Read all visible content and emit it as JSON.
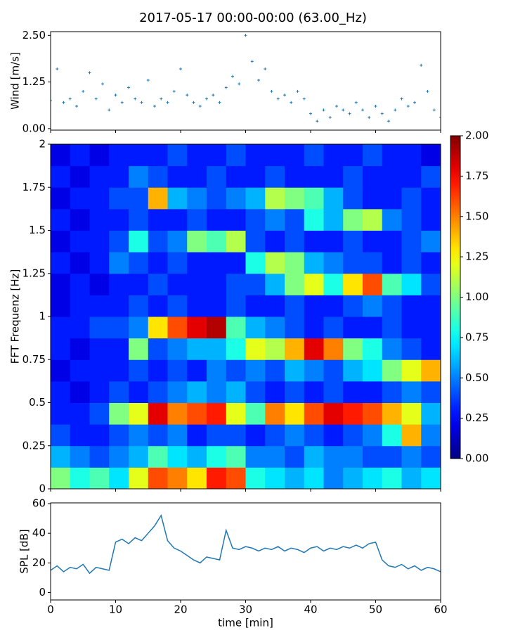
{
  "title": "2017-05-17 00:00-00:00 (63.00_Hz)",
  "chart_data": [
    {
      "type": "scatter",
      "ylabel": "Wind [m/s]",
      "color": "#1f77b4",
      "x": [
        0,
        1,
        2,
        3,
        4,
        5,
        6,
        7,
        8,
        9,
        10,
        11,
        12,
        13,
        14,
        15,
        16,
        17,
        18,
        19,
        20,
        21,
        22,
        23,
        24,
        25,
        26,
        27,
        28,
        29,
        30,
        31,
        32,
        33,
        34,
        35,
        36,
        37,
        38,
        39,
        40,
        41,
        42,
        43,
        44,
        45,
        46,
        47,
        48,
        49,
        50,
        51,
        52,
        53,
        54,
        55,
        56,
        57,
        58,
        59,
        60
      ],
      "values": [
        0.75,
        1.6,
        0.7,
        0.8,
        0.6,
        1.0,
        1.5,
        0.8,
        1.2,
        0.5,
        0.9,
        0.7,
        1.1,
        0.8,
        0.7,
        1.3,
        0.6,
        0.8,
        0.7,
        1.0,
        1.6,
        0.9,
        0.7,
        0.6,
        0.8,
        0.9,
        0.7,
        1.1,
        1.4,
        1.2,
        2.5,
        1.8,
        1.3,
        1.6,
        1.0,
        0.8,
        0.9,
        0.7,
        1.0,
        0.8,
        0.4,
        0.2,
        0.5,
        0.3,
        0.6,
        0.5,
        0.4,
        0.7,
        0.5,
        0.3,
        0.6,
        0.4,
        0.2,
        0.5,
        0.8,
        0.6,
        0.7,
        1.7,
        1.0,
        0.5,
        0.3
      ],
      "xlim": [
        0,
        60
      ],
      "ylim": [
        -0.04,
        2.6
      ],
      "yticks": [
        {
          "value": 0,
          "label": "0.00"
        },
        1.25,
        {
          "value": 2.5,
          "label": "2.50"
        }
      ]
    },
    {
      "type": "heatmap",
      "ylabel": "FFT Frequenz [Hz]",
      "colormap": "jet",
      "clim": [
        0,
        2
      ],
      "x_edges": [
        0,
        3,
        6,
        9,
        12,
        15,
        18,
        21,
        24,
        27,
        30,
        33,
        36,
        39,
        42,
        45,
        48,
        51,
        54,
        57,
        60
      ],
      "y_edges": [
        0,
        0.125,
        0.25,
        0.375,
        0.5,
        0.625,
        0.75,
        0.875,
        1,
        1.125,
        1.25,
        1.375,
        1.5,
        1.625,
        1.75,
        1.875,
        2
      ],
      "z": [
        [
          1.0,
          0.8,
          0.9,
          0.7,
          1.2,
          1.6,
          1.5,
          1.3,
          1.7,
          1.6,
          0.8,
          0.7,
          0.6,
          0.7,
          0.5,
          0.6,
          0.7,
          0.8,
          0.6,
          0.7
        ],
        [
          0.6,
          0.5,
          0.4,
          0.5,
          0.6,
          0.9,
          0.7,
          0.6,
          0.8,
          0.9,
          0.5,
          0.5,
          0.4,
          0.6,
          0.5,
          0.5,
          0.4,
          0.4,
          0.5,
          0.4
        ],
        [
          0.4,
          0.3,
          0.3,
          0.4,
          0.5,
          0.4,
          0.5,
          0.3,
          0.4,
          0.4,
          0.3,
          0.4,
          0.5,
          0.4,
          0.3,
          0.4,
          0.5,
          0.8,
          1.4,
          0.5
        ],
        [
          0.3,
          0.3,
          0.4,
          1.0,
          1.2,
          1.8,
          1.5,
          1.6,
          1.7,
          1.2,
          0.9,
          1.5,
          1.3,
          1.6,
          1.8,
          1.7,
          1.6,
          1.4,
          1.2,
          0.6
        ],
        [
          0.3,
          0.2,
          0.3,
          0.4,
          0.3,
          0.4,
          0.5,
          0.6,
          0.5,
          0.6,
          0.4,
          0.3,
          0.4,
          0.3,
          0.4,
          0.3,
          0.3,
          0.4,
          0.5,
          0.4
        ],
        [
          0.2,
          0.3,
          0.3,
          0.3,
          0.4,
          0.3,
          0.4,
          0.3,
          0.5,
          0.4,
          0.5,
          0.4,
          0.6,
          0.5,
          0.4,
          0.6,
          0.7,
          1.0,
          1.2,
          1.4
        ],
        [
          0.3,
          0.2,
          0.3,
          0.3,
          1.0,
          0.4,
          0.5,
          0.6,
          0.6,
          0.8,
          1.2,
          1.1,
          1.4,
          1.8,
          1.5,
          1.0,
          0.8,
          0.5,
          0.4,
          0.3
        ],
        [
          0.3,
          0.3,
          0.4,
          0.4,
          0.5,
          1.3,
          1.6,
          1.8,
          1.9,
          0.9,
          0.6,
          0.5,
          0.4,
          0.3,
          0.4,
          0.3,
          0.3,
          0.4,
          0.3,
          0.3
        ],
        [
          0.2,
          0.3,
          0.3,
          0.3,
          0.4,
          0.3,
          0.4,
          0.3,
          0.3,
          0.4,
          0.3,
          0.3,
          0.4,
          0.3,
          0.3,
          0.4,
          0.5,
          0.4,
          0.3,
          0.3
        ],
        [
          0.2,
          0.3,
          0.2,
          0.3,
          0.3,
          0.4,
          0.3,
          0.3,
          0.3,
          0.4,
          0.4,
          0.6,
          1.0,
          1.2,
          0.8,
          1.3,
          1.6,
          0.9,
          0.7,
          0.4
        ],
        [
          0.3,
          0.2,
          0.3,
          0.5,
          0.4,
          0.3,
          0.4,
          0.3,
          0.3,
          0.3,
          0.8,
          1.1,
          1.0,
          0.6,
          0.5,
          0.4,
          0.4,
          0.3,
          0.4,
          0.3
        ],
        [
          0.2,
          0.3,
          0.3,
          0.4,
          0.8,
          0.4,
          0.5,
          1.0,
          0.9,
          1.1,
          0.4,
          0.3,
          0.4,
          0.3,
          0.3,
          0.4,
          0.3,
          0.3,
          0.4,
          0.5
        ],
        [
          0.3,
          0.2,
          0.3,
          0.3,
          0.4,
          0.3,
          0.3,
          0.4,
          0.3,
          0.3,
          0.4,
          0.5,
          0.4,
          0.8,
          0.6,
          1.0,
          1.1,
          0.5,
          0.4,
          0.3
        ],
        [
          0.2,
          0.3,
          0.3,
          0.4,
          0.4,
          1.4,
          0.6,
          0.5,
          0.4,
          0.5,
          0.6,
          1.1,
          1.0,
          0.9,
          0.6,
          0.4,
          0.3,
          0.3,
          0.4,
          0.3
        ],
        [
          0.3,
          0.2,
          0.3,
          0.3,
          0.5,
          0.4,
          0.3,
          0.3,
          0.4,
          0.3,
          0.3,
          0.4,
          0.3,
          0.3,
          0.3,
          0.4,
          0.3,
          0.3,
          0.3,
          0.4
        ],
        [
          0.2,
          0.3,
          0.2,
          0.3,
          0.3,
          0.3,
          0.4,
          0.3,
          0.3,
          0.4,
          0.3,
          0.3,
          0.3,
          0.4,
          0.3,
          0.3,
          0.4,
          0.3,
          0.3,
          0.2
        ]
      ],
      "xlim": [
        0,
        60
      ],
      "ylim": [
        0,
        2
      ],
      "yticks": [
        0,
        0.25,
        0.5,
        0.75,
        1,
        1.25,
        1.5,
        1.75,
        2
      ],
      "cticks": [
        {
          "value": 0,
          "label": "0.00"
        },
        {
          "value": 0.25,
          "label": "0.25"
        },
        {
          "value": 0.5,
          "label": "0.50"
        },
        {
          "value": 0.75,
          "label": "0.75"
        },
        {
          "value": 1,
          "label": "1.00"
        },
        {
          "value": 1.25,
          "label": "1.25"
        },
        {
          "value": 1.5,
          "label": "1.50"
        },
        {
          "value": 1.75,
          "label": "1.75"
        },
        {
          "value": 2,
          "label": "2.00"
        }
      ]
    },
    {
      "type": "line",
      "ylabel": "SPL [dB]",
      "xlabel": "time [min]",
      "color": "#1f77b4",
      "x": [
        0,
        1,
        2,
        3,
        4,
        5,
        6,
        7,
        8,
        9,
        10,
        11,
        12,
        13,
        14,
        15,
        16,
        17,
        18,
        19,
        20,
        21,
        22,
        23,
        24,
        25,
        26,
        27,
        28,
        29,
        30,
        31,
        32,
        33,
        34,
        35,
        36,
        37,
        38,
        39,
        40,
        41,
        42,
        43,
        44,
        45,
        46,
        47,
        48,
        49,
        50,
        51,
        52,
        53,
        54,
        55,
        56,
        57,
        58,
        59,
        60
      ],
      "values": [
        15,
        18,
        14,
        17,
        16,
        19,
        13,
        17,
        16,
        15,
        34,
        36,
        33,
        37,
        35,
        40,
        45,
        52,
        35,
        30,
        28,
        25,
        22,
        20,
        24,
        23,
        22,
        42,
        30,
        29,
        31,
        30,
        28,
        30,
        29,
        31,
        28,
        30,
        29,
        27,
        30,
        31,
        28,
        30,
        29,
        31,
        30,
        32,
        30,
        33,
        34,
        22,
        18,
        17,
        19,
        16,
        18,
        15,
        17,
        16,
        14
      ],
      "xlim": [
        0,
        60
      ],
      "ylim": [
        -5,
        60.5
      ],
      "yticks": [
        0,
        20,
        40,
        60
      ],
      "xticks": [
        0,
        10,
        20,
        30,
        40,
        50,
        60
      ]
    }
  ]
}
